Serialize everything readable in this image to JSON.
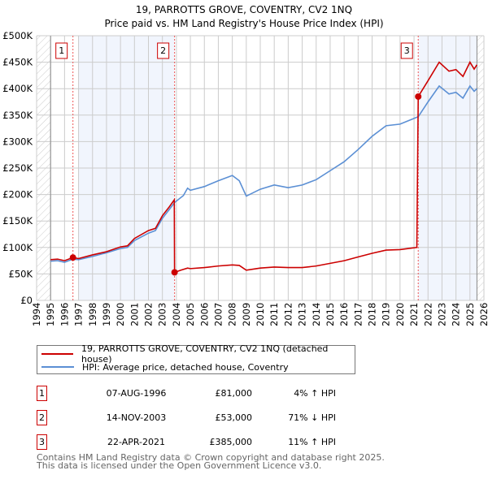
{
  "chart_data": {
    "type": "line",
    "title": "19, PARROTTS GROVE, COVENTRY, CV2 1NQ",
    "subtitle": "Price paid vs. HM Land Registry's House Price Index (HPI)",
    "xlim": [
      1994,
      2026
    ],
    "ylim": [
      0,
      500000
    ],
    "x_ticks": [
      "1994",
      "1995",
      "1996",
      "1997",
      "1998",
      "1999",
      "2000",
      "2001",
      "2002",
      "2003",
      "2004",
      "2005",
      "2006",
      "2007",
      "2008",
      "2009",
      "2010",
      "2011",
      "2012",
      "2013",
      "2014",
      "2015",
      "2016",
      "2017",
      "2018",
      "2019",
      "2020",
      "2021",
      "2022",
      "2023",
      "2024",
      "2025",
      "2026"
    ],
    "y_ticks": [
      {
        "v": 0,
        "label": "£0"
      },
      {
        "v": 50000,
        "label": "£50K"
      },
      {
        "v": 100000,
        "label": "£100K"
      },
      {
        "v": 150000,
        "label": "£150K"
      },
      {
        "v": 200000,
        "label": "£200K"
      },
      {
        "v": 250000,
        "label": "£250K"
      },
      {
        "v": 300000,
        "label": "£300K"
      },
      {
        "v": 350000,
        "label": "£350K"
      },
      {
        "v": 400000,
        "label": "£400K"
      },
      {
        "v": 450000,
        "label": "£450K"
      },
      {
        "v": 500000,
        "label": "£500K"
      }
    ],
    "grid": true,
    "series": [
      {
        "name": "19, PARROTTS GROVE, COVENTRY, CV2 1NQ (detached house)",
        "color": "#cc0000",
        "x": [
          1995,
          1995.5,
          1996,
          1996.6,
          1997,
          1998,
          1999,
          2000,
          2000.5,
          2001,
          2002,
          2002.5,
          2003,
          2003.5,
          2003.85,
          2003.87,
          2004.3,
          2004.8,
          2005,
          2006,
          2007,
          2008,
          2008.5,
          2009,
          2010,
          2011,
          2012,
          2013,
          2014,
          2015,
          2016,
          2017,
          2018,
          2019,
          2020,
          2021.2,
          2021.3,
          2022,
          2022.8,
          2023.5,
          2024,
          2024.5,
          2025,
          2025.3,
          2025.5
        ],
        "y": [
          77000,
          78000,
          75000,
          81000,
          79000,
          86000,
          92000,
          101000,
          103000,
          117000,
          132000,
          136000,
          160000,
          177000,
          190000,
          53000,
          57000,
          61000,
          60000,
          62000,
          65000,
          67000,
          66000,
          57000,
          61000,
          63000,
          62000,
          62000,
          65000,
          70000,
          75000,
          82000,
          89000,
          95000,
          96000,
          100000,
          385000,
          415000,
          450000,
          433000,
          436000,
          423000,
          450000,
          437000,
          445000
        ]
      },
      {
        "name": "HPI: Average price, detached house, Coventry",
        "color": "#5b8fd4",
        "x": [
          1995,
          1995.5,
          1996,
          1996.6,
          1997,
          1998,
          1999,
          2000,
          2000.5,
          2001,
          2002,
          2002.5,
          2003,
          2003.5,
          2003.87,
          2004.5,
          2004.8,
          2005,
          2006,
          2007,
          2008,
          2008.5,
          2009,
          2010,
          2011,
          2012,
          2013,
          2014,
          2015,
          2016,
          2017,
          2018,
          2019,
          2020,
          2021.3,
          2022,
          2022.8,
          2023.5,
          2024,
          2024.5,
          2025,
          2025.3,
          2025.5
        ],
        "y": [
          74000,
          75000,
          72000,
          78000,
          77000,
          83000,
          90000,
          98000,
          100000,
          113000,
          127000,
          132000,
          155000,
          172000,
          185000,
          198000,
          212000,
          208000,
          215000,
          226000,
          236000,
          226000,
          197000,
          210000,
          218000,
          213000,
          218000,
          228000,
          245000,
          262000,
          285000,
          310000,
          330000,
          333000,
          347000,
          375000,
          405000,
          390000,
          393000,
          382000,
          405000,
          395000,
          400000
        ]
      }
    ],
    "sales": [
      {
        "label": "1",
        "x": 1996.6,
        "y": 81000
      },
      {
        "label": "2",
        "x": 2003.87,
        "y": 53000
      },
      {
        "label": "3",
        "x": 2021.3,
        "y": 385000
      }
    ]
  },
  "legend": {
    "property": "19, PARROTTS GROVE, COVENTRY, CV2 1NQ (detached house)",
    "hpi": "HPI: Average price, detached house, Coventry"
  },
  "transactions": [
    {
      "num": "1",
      "date": "07-AUG-1996",
      "price": "£81,000",
      "hpi": "4% ↑ HPI"
    },
    {
      "num": "2",
      "date": "14-NOV-2003",
      "price": "£53,000",
      "hpi": "71% ↓ HPI"
    },
    {
      "num": "3",
      "date": "22-APR-2021",
      "price": "£385,000",
      "hpi": "11% ↑ HPI"
    }
  ],
  "footer": {
    "line1": "Contains HM Land Registry data © Crown copyright and database right 2025.",
    "line2": "This data is licensed under the Open Government Licence v3.0."
  }
}
